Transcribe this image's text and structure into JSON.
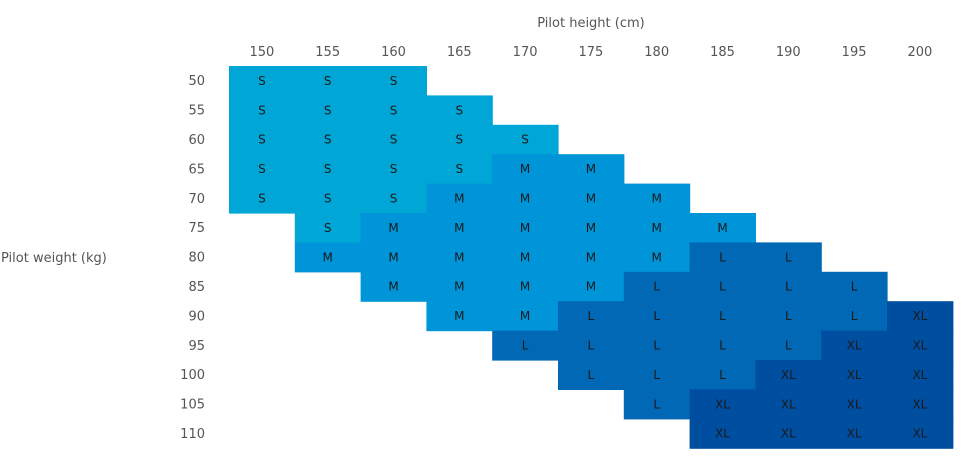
{
  "chart_data": {
    "type": "heatmap",
    "title": "",
    "xlabel": "Pilot height (cm)",
    "ylabel": "Pilot weight (kg)",
    "x": [
      150,
      155,
      160,
      165,
      170,
      175,
      180,
      185,
      190,
      195,
      200
    ],
    "y": [
      50,
      55,
      60,
      65,
      70,
      75,
      80,
      85,
      90,
      95,
      100,
      105,
      110
    ],
    "categories": [
      "S",
      "M",
      "L",
      "XL"
    ],
    "colors": {
      "S": "#00a6d6",
      "M": "#0095d9",
      "L": "#0068b5",
      "XL": "#004ea0"
    },
    "grid": false,
    "legend": "none",
    "rows": [
      {
        "weight": 50,
        "from": 150,
        "cells": [
          "S",
          "S",
          "S"
        ]
      },
      {
        "weight": 55,
        "from": 150,
        "cells": [
          "S",
          "S",
          "S",
          "S"
        ]
      },
      {
        "weight": 60,
        "from": 150,
        "cells": [
          "S",
          "S",
          "S",
          "S",
          "S"
        ]
      },
      {
        "weight": 65,
        "from": 150,
        "cells": [
          "S",
          "S",
          "S",
          "S",
          "M",
          "M"
        ]
      },
      {
        "weight": 70,
        "from": 150,
        "cells": [
          "S",
          "S",
          "S",
          "M",
          "M",
          "M",
          "M"
        ]
      },
      {
        "weight": 75,
        "from": 155,
        "cells": [
          "S",
          "M",
          "M",
          "M",
          "M",
          "M",
          "M"
        ]
      },
      {
        "weight": 80,
        "from": 155,
        "cells": [
          "M",
          "M",
          "M",
          "M",
          "M",
          "M",
          "L",
          "L"
        ]
      },
      {
        "weight": 85,
        "from": 160,
        "cells": [
          "M",
          "M",
          "M",
          "M",
          "L",
          "L",
          "L",
          "L"
        ]
      },
      {
        "weight": 90,
        "from": 165,
        "cells": [
          "M",
          "M",
          "L",
          "L",
          "L",
          "L",
          "L",
          "XL"
        ]
      },
      {
        "weight": 95,
        "from": 170,
        "cells": [
          "L",
          "L",
          "L",
          "L",
          "L",
          "XL",
          "XL"
        ]
      },
      {
        "weight": 100,
        "from": 175,
        "cells": [
          "L",
          "L",
          "L",
          "XL",
          "XL",
          "XL"
        ]
      },
      {
        "weight": 105,
        "from": 180,
        "cells": [
          "L",
          "XL",
          "XL",
          "XL",
          "XL"
        ]
      },
      {
        "weight": 110,
        "from": 185,
        "cells": [
          "XL",
          "XL",
          "XL",
          "XL"
        ]
      }
    ]
  }
}
